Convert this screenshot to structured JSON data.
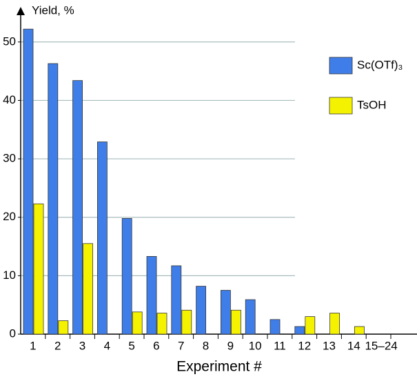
{
  "chart_data": {
    "type": "bar",
    "y_label": "Yield, %",
    "x_label": "Experiment #",
    "categories": [
      "1",
      "2",
      "3",
      "4",
      "5",
      "6",
      "7",
      "8",
      "9",
      "10",
      "11",
      "12",
      "13",
      "14",
      "15–24"
    ],
    "series": [
      {
        "name": "Sc(OTf)₃",
        "color": "#3f7ee8",
        "values": [
          52.2,
          46.3,
          43.4,
          32.9,
          19.8,
          13.3,
          11.7,
          8.2,
          7.5,
          5.9,
          2.5,
          1.3,
          null,
          null,
          null
        ]
      },
      {
        "name": "TsOH",
        "color": "#f5f200",
        "values": [
          22.3,
          2.3,
          15.5,
          null,
          3.8,
          3.6,
          4.1,
          null,
          4.1,
          null,
          null,
          3.0,
          3.6,
          1.3,
          null
        ]
      }
    ],
    "ylim": [
      0,
      56
    ],
    "yticks": [
      0,
      10,
      20,
      30,
      40,
      50
    ],
    "grid": true,
    "legend": "upper right"
  }
}
